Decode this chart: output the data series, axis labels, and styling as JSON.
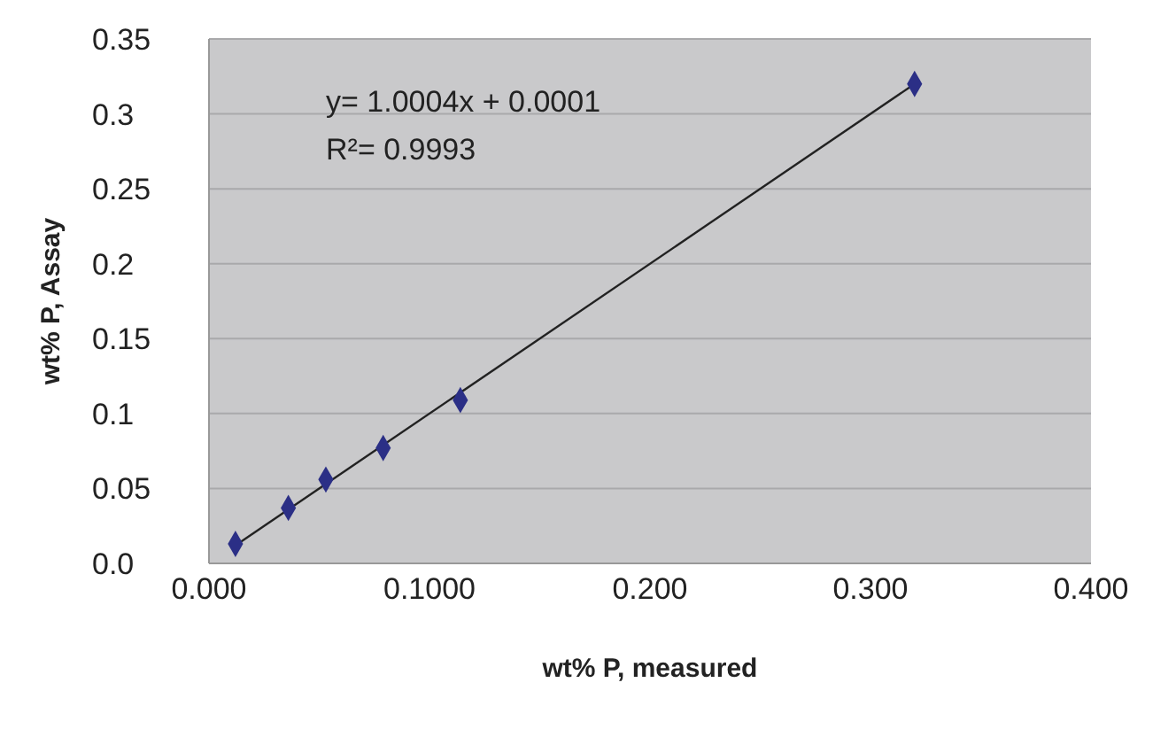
{
  "chart_data": {
    "type": "scatter",
    "xlabel": "wt% P, measured",
    "ylabel": "wt% P, Assay",
    "annotations": [
      "y= 1.0004x + 0.0001",
      "R²= 0.9993"
    ],
    "series": [
      {
        "color": "#2b2f86",
        "x": [
          0.012,
          0.036,
          0.053,
          0.079,
          0.114,
          0.32
        ],
        "values": [
          0.013,
          0.037,
          0.056,
          0.077,
          0.109,
          0.32
        ],
        "marker": "diamond"
      },
      {
        "type": "line",
        "color": "#222222",
        "x": [
          0.012,
          0.32
        ],
        "values": [
          0.012,
          0.32
        ],
        "marker": "none",
        "line_style": "solid"
      }
    ],
    "xlim": [
      0,
      0.4
    ],
    "xticks": [
      {
        "value": 0,
        "label": "0.000"
      },
      {
        "value": 0.1,
        "label": "0.1000"
      },
      {
        "value": 0.2,
        "label": "0.200"
      },
      {
        "value": 0.3,
        "label": "0.300"
      },
      {
        "value": 0.4,
        "label": "0.400"
      }
    ],
    "ylim": [
      0,
      0.35
    ],
    "yticks": [
      {
        "value": 0,
        "label": "0.0"
      },
      0.05,
      0.1,
      0.15,
      0.2,
      0.25,
      0.3,
      0.35
    ],
    "grid": "y"
  }
}
